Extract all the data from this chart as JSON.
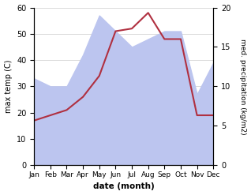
{
  "months": [
    "Jan",
    "Feb",
    "Mar",
    "Apr",
    "May",
    "Jun",
    "Jul",
    "Aug",
    "Sep",
    "Oct",
    "Nov",
    "Dec"
  ],
  "temp": [
    17,
    19,
    21,
    26,
    34,
    51,
    52,
    58,
    48,
    48,
    19,
    19
  ],
  "precip": [
    11,
    10,
    10,
    14,
    19,
    17,
    15,
    16,
    17,
    17,
    9,
    13
  ],
  "temp_color": "#b03040",
  "precip_fill_color": "#bcc5ef",
  "temp_ylim": [
    0,
    60
  ],
  "precip_ylim": [
    0,
    20
  ],
  "xlabel": "date (month)",
  "ylabel_left": "max temp (C)",
  "ylabel_right": "med. precipitation (kg/m2)",
  "bg_color": "#ffffff"
}
